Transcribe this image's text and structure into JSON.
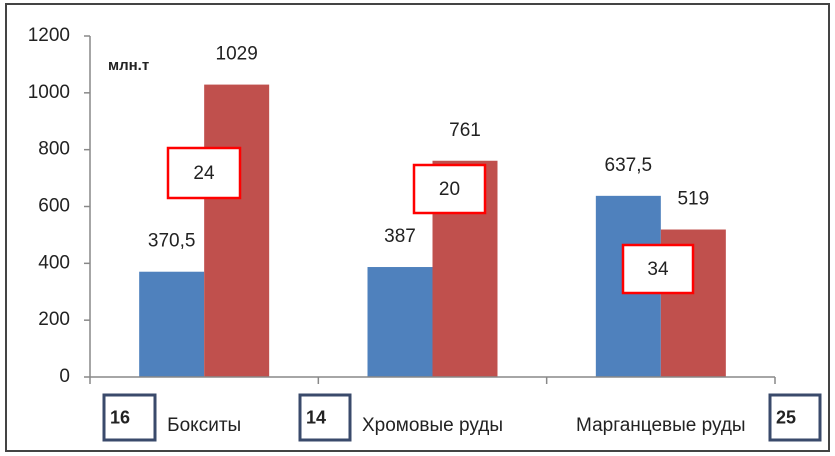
{
  "chart_data": {
    "type": "bar",
    "unit_label": "млн.т",
    "categories": [
      "Бокситы",
      "Хромовые руды",
      "Марганцевые руды"
    ],
    "series": [
      {
        "color": "#4f81bd",
        "values": [
          370.5,
          387,
          637.5
        ],
        "value_labels": [
          "370,5",
          "387",
          "637,5"
        ]
      },
      {
        "color": "#c0504d",
        "values": [
          1029,
          761,
          519
        ],
        "value_labels": [
          "1029",
          "761",
          "519"
        ]
      }
    ],
    "ylim": [
      0,
      1200
    ],
    "yticks": [
      0,
      200,
      400,
      600,
      800,
      1000,
      1200
    ],
    "annotations": [
      {
        "text": "24",
        "color": "#ff0000"
      },
      {
        "text": "20",
        "color": "#ff0000"
      },
      {
        "text": "34",
        "color": "#ff0000"
      },
      {
        "text": "16",
        "color": "#3a4a6b"
      },
      {
        "text": "14",
        "color": "#3a4a6b"
      },
      {
        "text": "25",
        "color": "#3a4a6b"
      }
    ]
  }
}
